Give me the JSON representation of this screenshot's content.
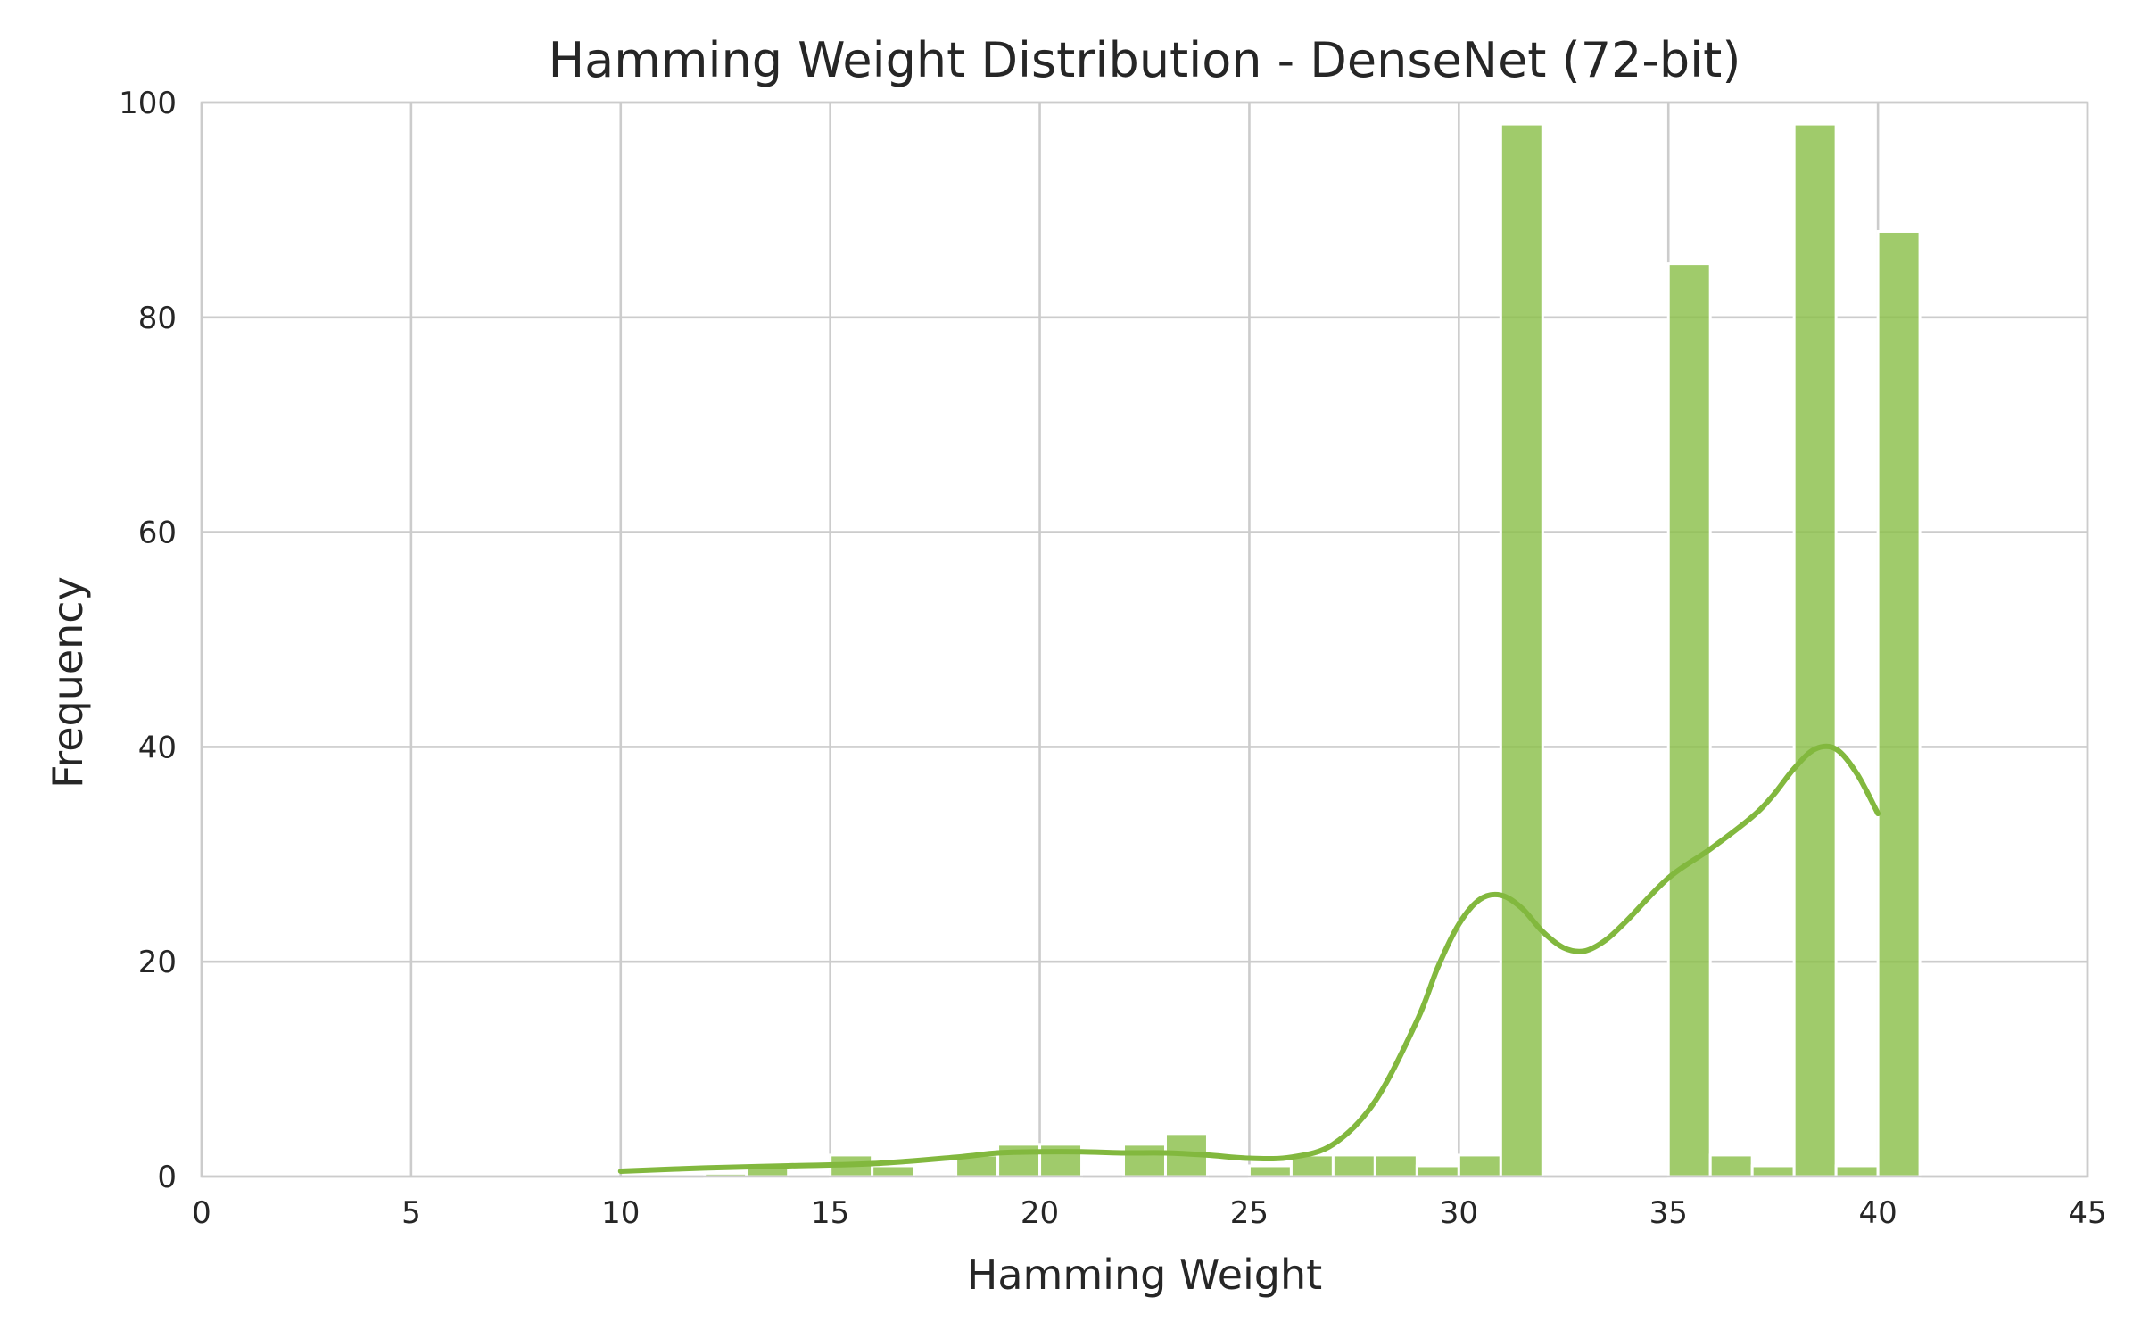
{
  "chart_data": {
    "type": "bar",
    "title": "Hamming Weight Distribution - DenseNet (72-bit)",
    "xlabel": "Hamming Weight",
    "ylabel": "Frequency",
    "xlim": [
      0,
      45
    ],
    "ylim": [
      0,
      100
    ],
    "xticks": [
      0,
      5,
      10,
      15,
      20,
      25,
      30,
      35,
      40,
      45
    ],
    "yticks": [
      0,
      20,
      40,
      60,
      80,
      100
    ],
    "grid": true,
    "bar_color": "#8bbf4a",
    "kde_color": "#82b83e",
    "bin_width": 1,
    "bins": [
      {
        "x": 12,
        "count": 0.3
      },
      {
        "x": 13,
        "count": 1
      },
      {
        "x": 15,
        "count": 2
      },
      {
        "x": 16,
        "count": 1
      },
      {
        "x": 18,
        "count": 2
      },
      {
        "x": 19,
        "count": 3
      },
      {
        "x": 20,
        "count": 3
      },
      {
        "x": 22,
        "count": 3
      },
      {
        "x": 23,
        "count": 4
      },
      {
        "x": 25,
        "count": 1
      },
      {
        "x": 26,
        "count": 2
      },
      {
        "x": 27,
        "count": 2
      },
      {
        "x": 28,
        "count": 2
      },
      {
        "x": 29,
        "count": 1
      },
      {
        "x": 30,
        "count": 2
      },
      {
        "x": 31,
        "count": 98
      },
      {
        "x": 35,
        "count": 85
      },
      {
        "x": 36,
        "count": 2
      },
      {
        "x": 37,
        "count": 1
      },
      {
        "x": 38,
        "count": 98
      },
      {
        "x": 39,
        "count": 1
      },
      {
        "x": 40,
        "count": 88
      }
    ],
    "kde": {
      "x": [
        10,
        12,
        14,
        16,
        18,
        19,
        20,
        21,
        22,
        23,
        24,
        25,
        26,
        27,
        28,
        29,
        29.5,
        30,
        30.5,
        31,
        31.5,
        32,
        32.5,
        33,
        33.5,
        34,
        35,
        36,
        37,
        37.5,
        38,
        38.5,
        39,
        39.5,
        40
      ],
      "y": [
        0.5,
        0.8,
        1.0,
        1.2,
        1.8,
        2.2,
        2.3,
        2.3,
        2.2,
        2.2,
        2.0,
        1.7,
        1.8,
        3.0,
        7.0,
        14.5,
        19.5,
        23.5,
        25.8,
        26.2,
        25.0,
        22.8,
        21.3,
        21.0,
        22.0,
        23.8,
        27.8,
        30.5,
        33.5,
        35.5,
        38.0,
        39.8,
        39.8,
        37.5,
        33.8
      ]
    }
  }
}
